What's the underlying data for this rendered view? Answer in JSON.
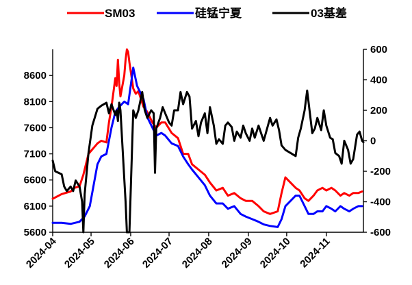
{
  "chart_data": {
    "type": "line",
    "title": "",
    "legend_position": "top",
    "grid": false,
    "left_axis": {
      "min": 5600,
      "max": 9100,
      "ticks": [
        5600,
        6100,
        6600,
        7100,
        7600,
        8100,
        8600
      ]
    },
    "right_axis": {
      "min": -600,
      "max": 600,
      "ticks": [
        -600,
        -400,
        -200,
        0,
        200,
        400,
        600
      ]
    },
    "x_axis": {
      "start": "2024-04-01",
      "end": "2024-11-30",
      "ticks": [
        "2024-04",
        "2024-05",
        "2024-06",
        "2024-07",
        "2024-08",
        "2024-09",
        "2024-10",
        "2024-11"
      ]
    },
    "series": [
      {
        "name": "SM03",
        "axis": "left",
        "color": "#ff0000",
        "points": [
          [
            "2024-04-01",
            6240
          ],
          [
            "2024-04-08",
            6330
          ],
          [
            "2024-04-15",
            6380
          ],
          [
            "2024-04-18",
            6450
          ],
          [
            "2024-04-22",
            6480
          ],
          [
            "2024-04-25",
            6700
          ],
          [
            "2024-04-29",
            7100
          ],
          [
            "2024-05-06",
            7300
          ],
          [
            "2024-05-09",
            7350
          ],
          [
            "2024-05-13",
            7320
          ],
          [
            "2024-05-15",
            7700
          ],
          [
            "2024-05-17",
            8000
          ],
          [
            "2024-05-20",
            8550
          ],
          [
            "2024-05-21",
            8400
          ],
          [
            "2024-05-22",
            8900
          ],
          [
            "2024-05-23",
            8450
          ],
          [
            "2024-05-24",
            8200
          ],
          [
            "2024-05-27",
            8600
          ],
          [
            "2024-05-28",
            8900
          ],
          [
            "2024-05-29",
            9100
          ],
          [
            "2024-05-30",
            9050
          ],
          [
            "2024-05-31",
            8850
          ],
          [
            "2024-06-03",
            8350
          ],
          [
            "2024-06-05",
            8250
          ],
          [
            "2024-06-07",
            8300
          ],
          [
            "2024-06-11",
            8000
          ],
          [
            "2024-06-14",
            7900
          ],
          [
            "2024-06-18",
            7700
          ],
          [
            "2024-06-21",
            7600
          ],
          [
            "2024-06-25",
            7700
          ],
          [
            "2024-06-28",
            7700
          ],
          [
            "2024-07-03",
            7500
          ],
          [
            "2024-07-08",
            7400
          ],
          [
            "2024-07-12",
            7100
          ],
          [
            "2024-07-16",
            7100
          ],
          [
            "2024-07-19",
            6900
          ],
          [
            "2024-07-24",
            6800
          ],
          [
            "2024-07-29",
            6700
          ],
          [
            "2024-08-02",
            6550
          ],
          [
            "2024-08-07",
            6400
          ],
          [
            "2024-08-12",
            6450
          ],
          [
            "2024-08-16",
            6300
          ],
          [
            "2024-08-21",
            6350
          ],
          [
            "2024-08-26",
            6250
          ],
          [
            "2024-08-30",
            6200
          ],
          [
            "2024-09-04",
            6200
          ],
          [
            "2024-09-09",
            6100
          ],
          [
            "2024-09-13",
            6000
          ],
          [
            "2024-09-18",
            5950
          ],
          [
            "2024-09-24",
            6000
          ],
          [
            "2024-09-27",
            6350
          ],
          [
            "2024-09-30",
            6650
          ],
          [
            "2024-10-08",
            6450
          ],
          [
            "2024-10-11",
            6400
          ],
          [
            "2024-10-15",
            6250
          ],
          [
            "2024-10-18",
            6200
          ],
          [
            "2024-10-22",
            6300
          ],
          [
            "2024-10-25",
            6400
          ],
          [
            "2024-10-29",
            6450
          ],
          [
            "2024-11-01",
            6400
          ],
          [
            "2024-11-05",
            6450
          ],
          [
            "2024-11-08",
            6400
          ],
          [
            "2024-11-12",
            6300
          ],
          [
            "2024-11-15",
            6350
          ],
          [
            "2024-11-19",
            6300
          ],
          [
            "2024-11-22",
            6350
          ],
          [
            "2024-11-26",
            6350
          ],
          [
            "2024-11-29",
            6380
          ]
        ]
      },
      {
        "name": "硅锰宁夏",
        "axis": "left",
        "color": "#0000ff",
        "points": [
          [
            "2024-04-01",
            5780
          ],
          [
            "2024-04-08",
            5780
          ],
          [
            "2024-04-15",
            5760
          ],
          [
            "2024-04-22",
            5800
          ],
          [
            "2024-04-26",
            5900
          ],
          [
            "2024-04-30",
            6100
          ],
          [
            "2024-05-06",
            6900
          ],
          [
            "2024-05-09",
            7050
          ],
          [
            "2024-05-13",
            7100
          ],
          [
            "2024-05-17",
            7600
          ],
          [
            "2024-05-20",
            7900
          ],
          [
            "2024-05-23",
            8000
          ],
          [
            "2024-05-27",
            8100
          ],
          [
            "2024-05-30",
            8050
          ],
          [
            "2024-06-03",
            8750
          ],
          [
            "2024-06-06",
            8400
          ],
          [
            "2024-06-11",
            8150
          ],
          [
            "2024-06-14",
            7800
          ],
          [
            "2024-06-18",
            7600
          ],
          [
            "2024-06-21",
            7450
          ],
          [
            "2024-06-25",
            7500
          ],
          [
            "2024-06-28",
            7450
          ],
          [
            "2024-07-03",
            7300
          ],
          [
            "2024-07-08",
            7250
          ],
          [
            "2024-07-12",
            7050
          ],
          [
            "2024-07-16",
            6900
          ],
          [
            "2024-07-19",
            6800
          ],
          [
            "2024-07-24",
            6650
          ],
          [
            "2024-07-29",
            6500
          ],
          [
            "2024-08-02",
            6300
          ],
          [
            "2024-08-07",
            6150
          ],
          [
            "2024-08-12",
            6150
          ],
          [
            "2024-08-16",
            6050
          ],
          [
            "2024-08-21",
            6100
          ],
          [
            "2024-08-26",
            5950
          ],
          [
            "2024-08-30",
            5900
          ],
          [
            "2024-09-04",
            5850
          ],
          [
            "2024-09-09",
            5800
          ],
          [
            "2024-09-13",
            5750
          ],
          [
            "2024-09-18",
            5720
          ],
          [
            "2024-09-24",
            5700
          ],
          [
            "2024-09-27",
            5850
          ],
          [
            "2024-09-30",
            6100
          ],
          [
            "2024-10-08",
            6300
          ],
          [
            "2024-10-11",
            6300
          ],
          [
            "2024-10-15",
            6100
          ],
          [
            "2024-10-18",
            5950
          ],
          [
            "2024-10-22",
            5950
          ],
          [
            "2024-10-25",
            6000
          ],
          [
            "2024-10-29",
            6000
          ],
          [
            "2024-11-01",
            6100
          ],
          [
            "2024-11-05",
            6050
          ],
          [
            "2024-11-08",
            6000
          ],
          [
            "2024-11-12",
            6100
          ],
          [
            "2024-11-15",
            6050
          ],
          [
            "2024-11-19",
            6000
          ],
          [
            "2024-11-22",
            6050
          ],
          [
            "2024-11-26",
            6100
          ],
          [
            "2024-11-29",
            6100
          ]
        ]
      },
      {
        "name": "03基差",
        "axis": "right",
        "color": "#000000",
        "points": [
          [
            "2024-04-01",
            -130
          ],
          [
            "2024-04-03",
            -200
          ],
          [
            "2024-04-08",
            -220
          ],
          [
            "2024-04-10",
            -300
          ],
          [
            "2024-04-12",
            -330
          ],
          [
            "2024-04-15",
            -300
          ],
          [
            "2024-04-17",
            -330
          ],
          [
            "2024-04-19",
            -260
          ],
          [
            "2024-04-22",
            -300
          ],
          [
            "2024-04-24",
            -400
          ],
          [
            "2024-04-25",
            -600
          ],
          [
            "2024-04-26",
            -350
          ],
          [
            "2024-04-29",
            -80
          ],
          [
            "2024-05-02",
            100
          ],
          [
            "2024-05-06",
            210
          ],
          [
            "2024-05-09",
            230
          ],
          [
            "2024-05-13",
            250
          ],
          [
            "2024-05-15",
            180
          ],
          [
            "2024-05-17",
            240
          ],
          [
            "2024-05-20",
            170
          ],
          [
            "2024-05-21",
            200
          ],
          [
            "2024-05-22",
            130
          ],
          [
            "2024-05-23",
            250
          ],
          [
            "2024-05-24",
            200
          ],
          [
            "2024-05-27",
            -250
          ],
          [
            "2024-05-28",
            -400
          ],
          [
            "2024-05-29",
            -600
          ],
          [
            "2024-05-31",
            -600
          ],
          [
            "2024-06-03",
            200
          ],
          [
            "2024-06-05",
            150
          ],
          [
            "2024-06-07",
            200
          ],
          [
            "2024-06-10",
            320
          ],
          [
            "2024-06-12",
            200
          ],
          [
            "2024-06-14",
            150
          ],
          [
            "2024-06-17",
            200
          ],
          [
            "2024-06-19",
            180
          ],
          [
            "2024-06-20",
            -210
          ],
          [
            "2024-06-21",
            80
          ],
          [
            "2024-06-24",
            150
          ],
          [
            "2024-06-26",
            220
          ],
          [
            "2024-06-28",
            180
          ],
          [
            "2024-07-01",
            120
          ],
          [
            "2024-07-03",
            100
          ],
          [
            "2024-07-05",
            200
          ],
          [
            "2024-07-08",
            200
          ],
          [
            "2024-07-10",
            320
          ],
          [
            "2024-07-12",
            240
          ],
          [
            "2024-07-15",
            320
          ],
          [
            "2024-07-17",
            290
          ],
          [
            "2024-07-19",
            80
          ],
          [
            "2024-07-22",
            130
          ],
          [
            "2024-07-24",
            30
          ],
          [
            "2024-07-26",
            120
          ],
          [
            "2024-07-29",
            180
          ],
          [
            "2024-07-31",
            50
          ],
          [
            "2024-08-02",
            220
          ],
          [
            "2024-08-05",
            100
          ],
          [
            "2024-08-07",
            -20
          ],
          [
            "2024-08-09",
            10
          ],
          [
            "2024-08-12",
            -20
          ],
          [
            "2024-08-14",
            100
          ],
          [
            "2024-08-16",
            120
          ],
          [
            "2024-08-19",
            90
          ],
          [
            "2024-08-21",
            0
          ],
          [
            "2024-08-23",
            60
          ],
          [
            "2024-08-26",
            20
          ],
          [
            "2024-08-28",
            100
          ],
          [
            "2024-08-30",
            50
          ],
          [
            "2024-09-02",
            0
          ],
          [
            "2024-09-04",
            80
          ],
          [
            "2024-09-06",
            20
          ],
          [
            "2024-09-09",
            100
          ],
          [
            "2024-09-11",
            50
          ],
          [
            "2024-09-13",
            0
          ],
          [
            "2024-09-18",
            150
          ],
          [
            "2024-09-20",
            100
          ],
          [
            "2024-09-23",
            140
          ],
          [
            "2024-09-25",
            70
          ],
          [
            "2024-09-27",
            -30
          ],
          [
            "2024-09-30",
            -60
          ],
          [
            "2024-10-08",
            -100
          ],
          [
            "2024-10-10",
            20
          ],
          [
            "2024-10-12",
            80
          ],
          [
            "2024-10-15",
            200
          ],
          [
            "2024-10-17",
            330
          ],
          [
            "2024-10-21",
            50
          ],
          [
            "2024-10-23",
            80
          ],
          [
            "2024-10-25",
            150
          ],
          [
            "2024-10-28",
            70
          ],
          [
            "2024-10-30",
            200
          ],
          [
            "2024-11-01",
            100
          ],
          [
            "2024-11-04",
            20
          ],
          [
            "2024-11-06",
            10
          ],
          [
            "2024-11-08",
            -80
          ],
          [
            "2024-11-11",
            -100
          ],
          [
            "2024-11-13",
            -150
          ],
          [
            "2024-11-15",
            0
          ],
          [
            "2024-11-18",
            -60
          ],
          [
            "2024-11-20",
            -150
          ],
          [
            "2024-11-22",
            -120
          ],
          [
            "2024-11-25",
            40
          ],
          [
            "2024-11-27",
            60
          ],
          [
            "2024-11-29",
            0
          ],
          [
            "2024-11-30",
            -10
          ]
        ]
      }
    ]
  }
}
